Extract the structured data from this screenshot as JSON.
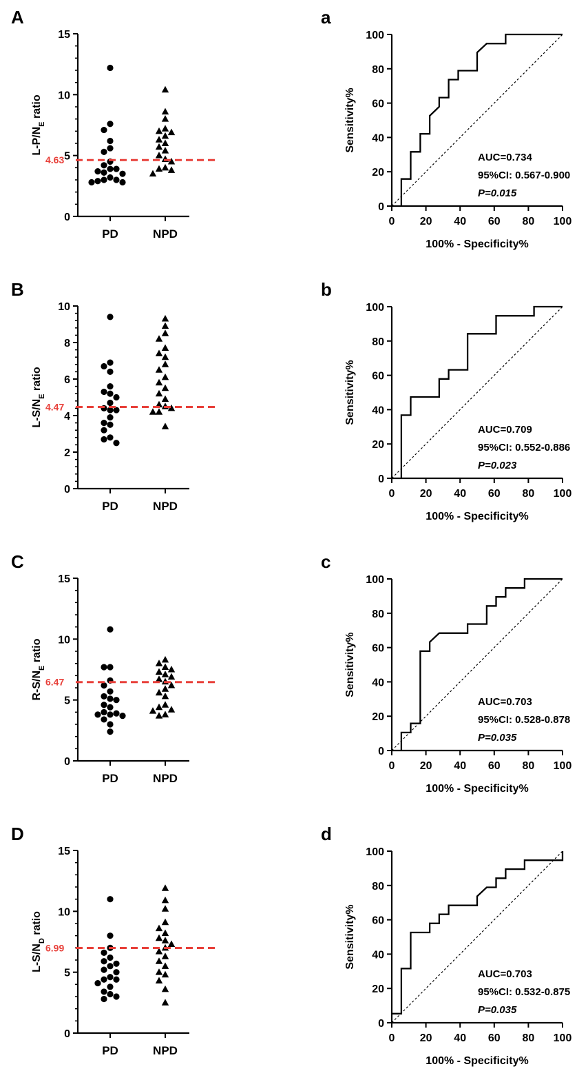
{
  "colors": {
    "cutoff": "#e8403a",
    "ink": "#000000",
    "background": "#ffffff"
  },
  "chart_data": [
    {
      "type": "scatter",
      "panel": "A",
      "ylabel_main": "L-P/N",
      "ylabel_sub": "E",
      "ylabel_tail": " ratio",
      "ylim": [
        0,
        15
      ],
      "yticks": [
        0,
        5,
        10,
        15
      ],
      "categories": [
        "PD",
        "NPD"
      ],
      "cutoff": 4.63,
      "cutoff_label": "4.63",
      "series": [
        {
          "name": "PD",
          "marker": "circle",
          "values": [
            12.2,
            7.6,
            7.1,
            6.2,
            5.6,
            5.3,
            4.5,
            4.2,
            3.9,
            3.9,
            3.7,
            3.6,
            3.5,
            3.2,
            3.0,
            3.0,
            2.9,
            2.8,
            2.8
          ]
        },
        {
          "name": "NPD",
          "marker": "triangle",
          "values": [
            10.4,
            8.6,
            8.0,
            7.2,
            7.0,
            6.9,
            6.6,
            6.3,
            6.0,
            5.7,
            5.4,
            5.0,
            4.7,
            4.5,
            4.0,
            3.9,
            3.8,
            3.5
          ]
        }
      ]
    },
    {
      "type": "line",
      "panel": "a",
      "xlabel": "100% - Specificity%",
      "ylabel": "Sensitivity%",
      "xlim": [
        0,
        100
      ],
      "ylim": [
        0,
        100
      ],
      "xticks": [
        0,
        20,
        40,
        60,
        80,
        100
      ],
      "yticks": [
        0,
        20,
        40,
        60,
        80,
        100
      ],
      "auc": "AUC=0.734",
      "ci": "95%CI: 0.567-0.900",
      "p": "P=0.015",
      "roc": [
        [
          5.6,
          0
        ],
        [
          5.6,
          15.8
        ],
        [
          11.1,
          15.8
        ],
        [
          11.1,
          31.6
        ],
        [
          16.7,
          31.6
        ],
        [
          16.7,
          42.1
        ],
        [
          22.2,
          42.1
        ],
        [
          22.2,
          52.6
        ],
        [
          27.8,
          57.9
        ],
        [
          27.8,
          63.2
        ],
        [
          33.3,
          63.2
        ],
        [
          33.3,
          73.7
        ],
        [
          38.9,
          73.7
        ],
        [
          38.9,
          78.9
        ],
        [
          50,
          78.9
        ],
        [
          50,
          89.5
        ],
        [
          55.6,
          94.7
        ],
        [
          66.7,
          94.7
        ],
        [
          66.7,
          100
        ],
        [
          100,
          100
        ]
      ]
    },
    {
      "type": "scatter",
      "panel": "B",
      "ylabel_main": "L-S/N",
      "ylabel_sub": "E",
      "ylabel_tail": " ratio",
      "ylim": [
        0,
        10
      ],
      "yticks": [
        0,
        2,
        4,
        6,
        8,
        10
      ],
      "categories": [
        "PD",
        "NPD"
      ],
      "cutoff": 4.47,
      "cutoff_label": "4.47",
      "series": [
        {
          "name": "PD",
          "marker": "circle",
          "values": [
            9.4,
            6.9,
            6.7,
            6.4,
            5.6,
            5.3,
            5.2,
            5.0,
            4.7,
            4.4,
            4.3,
            4.3,
            3.9,
            3.6,
            3.5,
            3.2,
            2.8,
            2.7,
            2.5
          ]
        },
        {
          "name": "NPD",
          "marker": "triangle",
          "values": [
            9.3,
            8.9,
            8.5,
            8.2,
            7.7,
            7.4,
            7.2,
            6.8,
            6.5,
            6.1,
            5.8,
            5.5,
            5.2,
            4.9,
            4.6,
            4.5,
            4.4,
            4.2,
            4.2,
            3.4
          ]
        }
      ]
    },
    {
      "type": "line",
      "panel": "b",
      "xlabel": "100% - Specificity%",
      "ylabel": "Sensitivity%",
      "xlim": [
        0,
        100
      ],
      "ylim": [
        0,
        100
      ],
      "xticks": [
        0,
        20,
        40,
        60,
        80,
        100
      ],
      "yticks": [
        0,
        20,
        40,
        60,
        80,
        100
      ],
      "auc": "AUC=0.709",
      "ci": "95%CI: 0.552-0.886",
      "p": "P=0.023",
      "roc": [
        [
          5.6,
          0
        ],
        [
          5.6,
          36.8
        ],
        [
          11.1,
          36.8
        ],
        [
          11.1,
          47.4
        ],
        [
          27.8,
          47.4
        ],
        [
          27.8,
          57.9
        ],
        [
          33.3,
          57.9
        ],
        [
          33.3,
          63.2
        ],
        [
          44.4,
          63.2
        ],
        [
          44.4,
          84.2
        ],
        [
          61.1,
          84.2
        ],
        [
          61.1,
          94.7
        ],
        [
          83.3,
          94.7
        ],
        [
          83.3,
          100
        ],
        [
          100,
          100
        ]
      ]
    },
    {
      "type": "scatter",
      "panel": "C",
      "ylabel_main": "R-S/N",
      "ylabel_sub": "E",
      "ylabel_tail": " ratio",
      "ylim": [
        0,
        15
      ],
      "yticks": [
        0,
        5,
        10,
        15
      ],
      "categories": [
        "PD",
        "NPD"
      ],
      "cutoff": 6.47,
      "cutoff_label": "6.47",
      "series": [
        {
          "name": "PD",
          "marker": "circle",
          "values": [
            10.8,
            7.7,
            7.7,
            6.6,
            6.2,
            5.7,
            5.3,
            5.1,
            5.0,
            4.6,
            4.4,
            4.0,
            3.9,
            3.8,
            3.8,
            3.7,
            3.4,
            3.0,
            2.4
          ]
        },
        {
          "name": "NPD",
          "marker": "triangle",
          "values": [
            8.3,
            8.0,
            7.7,
            7.5,
            7.3,
            7.1,
            6.9,
            6.7,
            6.5,
            6.2,
            5.9,
            5.6,
            5.3,
            4.6,
            4.4,
            4.2,
            4.1,
            3.8,
            3.7
          ]
        }
      ]
    },
    {
      "type": "line",
      "panel": "c",
      "xlabel": "100% - Specificity%",
      "ylabel": "Sensitivity%",
      "xlim": [
        0,
        100
      ],
      "ylim": [
        0,
        100
      ],
      "xticks": [
        0,
        20,
        40,
        60,
        80,
        100
      ],
      "yticks": [
        0,
        20,
        40,
        60,
        80,
        100
      ],
      "auc": "AUC=0.703",
      "ci": "95%CI: 0.528-0.878",
      "p": "P=0.035",
      "roc": [
        [
          5.6,
          0
        ],
        [
          5.6,
          10.5
        ],
        [
          11.1,
          10.5
        ],
        [
          11.1,
          15.8
        ],
        [
          16.7,
          15.8
        ],
        [
          16.7,
          57.9
        ],
        [
          22.2,
          57.9
        ],
        [
          22.2,
          63.2
        ],
        [
          27.8,
          68.4
        ],
        [
          44.4,
          68.4
        ],
        [
          44.4,
          73.7
        ],
        [
          55.6,
          73.7
        ],
        [
          55.6,
          84.2
        ],
        [
          61.1,
          84.2
        ],
        [
          61.1,
          89.5
        ],
        [
          66.7,
          89.5
        ],
        [
          66.7,
          94.7
        ],
        [
          77.8,
          94.7
        ],
        [
          77.8,
          100
        ],
        [
          100,
          100
        ]
      ]
    },
    {
      "type": "scatter",
      "panel": "D",
      "ylabel_main": "L-S/N",
      "ylabel_sub": "D",
      "ylabel_tail": " ratio",
      "ylim": [
        0,
        15
      ],
      "yticks": [
        0,
        5,
        10,
        15
      ],
      "categories": [
        "PD",
        "NPD"
      ],
      "cutoff": 6.99,
      "cutoff_label": "6.99",
      "series": [
        {
          "name": "PD",
          "marker": "circle",
          "values": [
            11.0,
            8.0,
            7.0,
            6.6,
            6.2,
            5.9,
            5.7,
            5.5,
            5.2,
            5.0,
            4.6,
            4.4,
            4.4,
            4.1,
            3.8,
            3.4,
            3.2,
            3.0,
            2.8
          ]
        },
        {
          "name": "NPD",
          "marker": "triangle",
          "values": [
            11.9,
            10.9,
            10.2,
            9.1,
            8.6,
            8.2,
            7.8,
            7.6,
            7.3,
            7.0,
            6.7,
            6.3,
            5.9,
            5.5,
            5.0,
            4.8,
            4.3,
            3.6,
            2.5
          ]
        }
      ]
    },
    {
      "type": "line",
      "panel": "d",
      "xlabel": "100% - Specificity%",
      "ylabel": "Sensitivity%",
      "xlim": [
        0,
        100
      ],
      "ylim": [
        0,
        100
      ],
      "xticks": [
        0,
        20,
        40,
        60,
        80,
        100
      ],
      "yticks": [
        0,
        20,
        40,
        60,
        80,
        100
      ],
      "auc": "AUC=0.703",
      "ci": "95%CI: 0.532-0.875",
      "p": "P=0.035",
      "roc": [
        [
          0,
          5.3
        ],
        [
          5.6,
          5.3
        ],
        [
          5.6,
          31.6
        ],
        [
          11.1,
          31.6
        ],
        [
          11.1,
          52.6
        ],
        [
          22.2,
          52.6
        ],
        [
          22.2,
          57.9
        ],
        [
          27.8,
          57.9
        ],
        [
          27.8,
          63.2
        ],
        [
          33.3,
          63.2
        ],
        [
          33.3,
          68.4
        ],
        [
          50,
          68.4
        ],
        [
          50,
          73.7
        ],
        [
          55.6,
          78.9
        ],
        [
          61.1,
          78.9
        ],
        [
          61.1,
          84.2
        ],
        [
          66.7,
          84.2
        ],
        [
          66.7,
          89.5
        ],
        [
          77.8,
          89.5
        ],
        [
          77.8,
          94.7
        ],
        [
          100,
          94.7
        ],
        [
          100,
          100
        ]
      ]
    }
  ]
}
